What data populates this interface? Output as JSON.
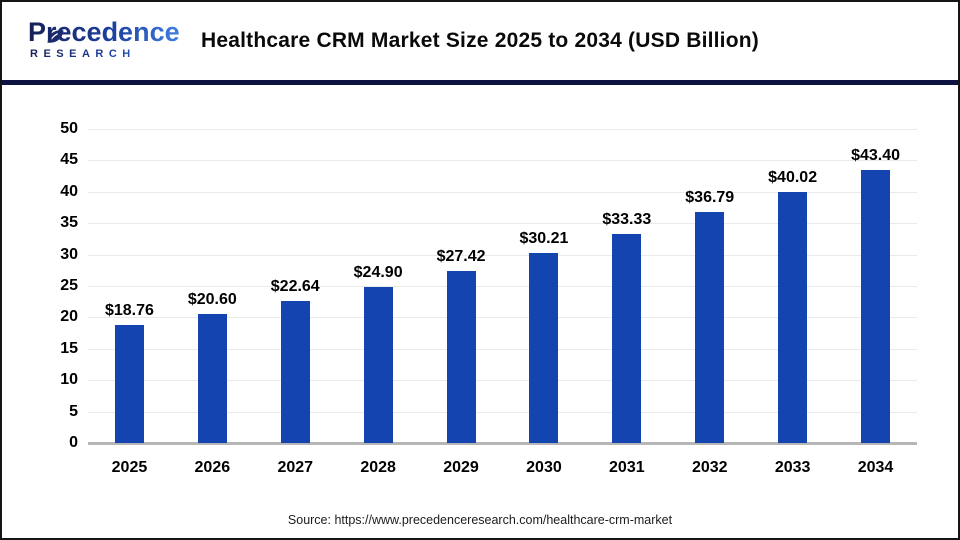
{
  "header": {
    "logo": {
      "name": "Precedence",
      "subtitle": "RESEARCH"
    },
    "title": "Healthcare CRM Market Size 2025 to 2034 (USD Billion)"
  },
  "chart_data": {
    "type": "bar",
    "title": "Healthcare CRM Market Size 2025 to 2034 (USD Billion)",
    "unit": "USD Billion",
    "categories": [
      "2025",
      "2026",
      "2027",
      "2028",
      "2029",
      "2030",
      "2031",
      "2032",
      "2033",
      "2034"
    ],
    "values": [
      18.76,
      20.6,
      22.64,
      24.9,
      27.42,
      30.21,
      33.33,
      36.79,
      40.02,
      43.4
    ],
    "value_labels": [
      "$18.76",
      "$20.60",
      "$22.64",
      "$24.90",
      "$27.42",
      "$30.21",
      "$33.33",
      "$36.79",
      "$40.02",
      "$43.40"
    ],
    "ylim": [
      0,
      50
    ],
    "ytick_step": 5,
    "grid": true,
    "legend_position": "none",
    "bar_color": "#1444b0",
    "gridline_color": "#eaeaea",
    "axis_line_color": "#b6b6b6"
  },
  "footer": {
    "source": "Source: https://www.precedenceresearch.com/healthcare-crm-market"
  }
}
